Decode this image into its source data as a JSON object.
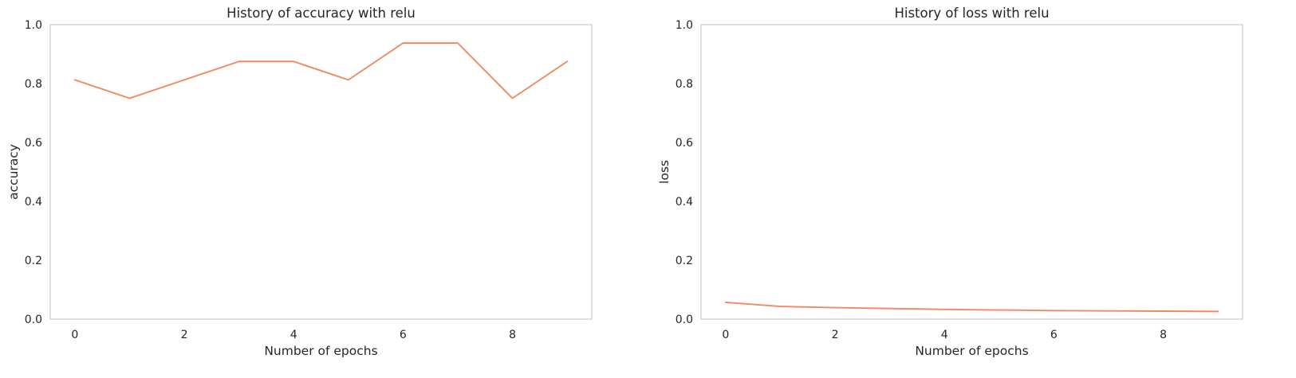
{
  "chart_data": [
    {
      "type": "line",
      "title": "History of accuracy with relu",
      "xlabel": "Number of epochs",
      "ylabel": "accuracy",
      "x": [
        0,
        1,
        2,
        3,
        4,
        5,
        6,
        7,
        8,
        9
      ],
      "series": [
        {
          "values": [
            0.8125,
            0.75,
            0.8125,
            0.875,
            0.875,
            0.8125,
            0.9375,
            0.9375,
            0.75,
            0.875
          ]
        }
      ],
      "xlim": [
        -0.45,
        9.45
      ],
      "ylim": [
        0,
        1
      ],
      "xticks": [
        0,
        2,
        4,
        6,
        8
      ],
      "yticks": [
        0.0,
        0.2,
        0.4,
        0.6,
        0.8,
        1.0
      ],
      "xtick_labels": [
        "0",
        "2",
        "4",
        "6",
        "8"
      ],
      "ytick_labels": [
        "0.0",
        "0.2",
        "0.4",
        "0.6",
        "0.8",
        "1.0"
      ],
      "grid": true,
      "color": "#ee8a62"
    },
    {
      "type": "line",
      "title": "History of loss with relu",
      "xlabel": "Number of epochs",
      "ylabel": "loss",
      "x": [
        0,
        1,
        2,
        3,
        4,
        5,
        6,
        7,
        8,
        9
      ],
      "series": [
        {
          "values": [
            0.057,
            0.043,
            0.039,
            0.036,
            0.033,
            0.031,
            0.029,
            0.028,
            0.027,
            0.026
          ]
        }
      ],
      "xlim": [
        -0.45,
        9.45
      ],
      "ylim": [
        0,
        1
      ],
      "xticks": [
        0,
        2,
        4,
        6,
        8
      ],
      "yticks": [
        0.0,
        0.2,
        0.4,
        0.6,
        0.8,
        1.0
      ],
      "xtick_labels": [
        "0",
        "2",
        "4",
        "6",
        "8"
      ],
      "ytick_labels": [
        "0.0",
        "0.2",
        "0.4",
        "0.6",
        "0.8",
        "1.0"
      ],
      "grid": true,
      "color": "#ee8a62"
    }
  ]
}
